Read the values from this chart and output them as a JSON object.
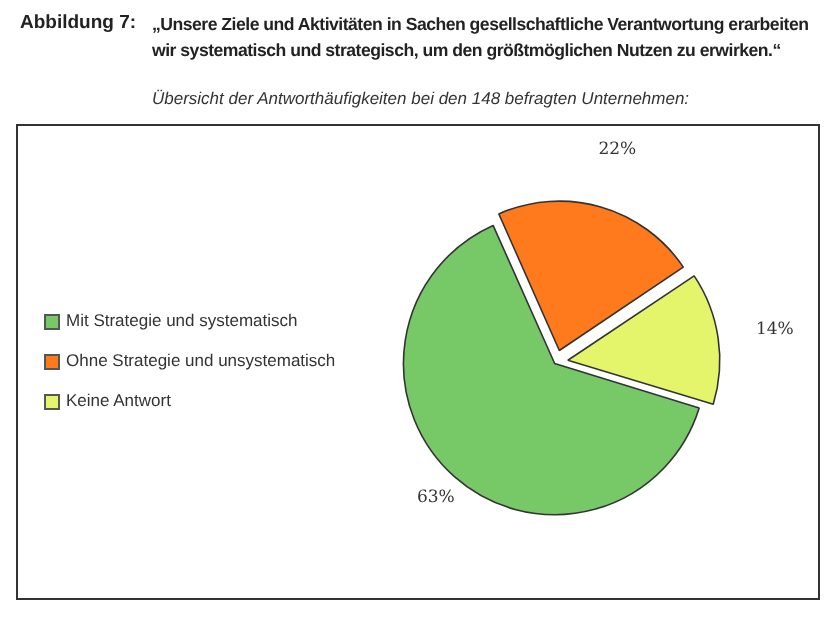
{
  "chart_data": {
    "type": "pie",
    "title": "„Unsere Ziele und Aktivitäten in Sachen gesellschaftliche Verantwortung erarbeiten wir systematisch und strategisch, um den größtmöglichen Nutzen zu erwirken.“",
    "subtitle": "Übersicht der Antworthäufigkeiten bei den 148 befragten Unternehmen:",
    "annotations": [
      "Abbildung 7:"
    ],
    "categories": [
      "Mit Strategie und systematisch",
      "Ohne Strategie und unsystematisch",
      "Keine Antwort"
    ],
    "values": [
      63,
      22,
      14
    ],
    "colors": [
      "#77c866",
      "#ff7a1c",
      "#e4f56c"
    ],
    "value_labels": [
      "63%",
      "22%",
      "14%"
    ],
    "legend": "left"
  }
}
